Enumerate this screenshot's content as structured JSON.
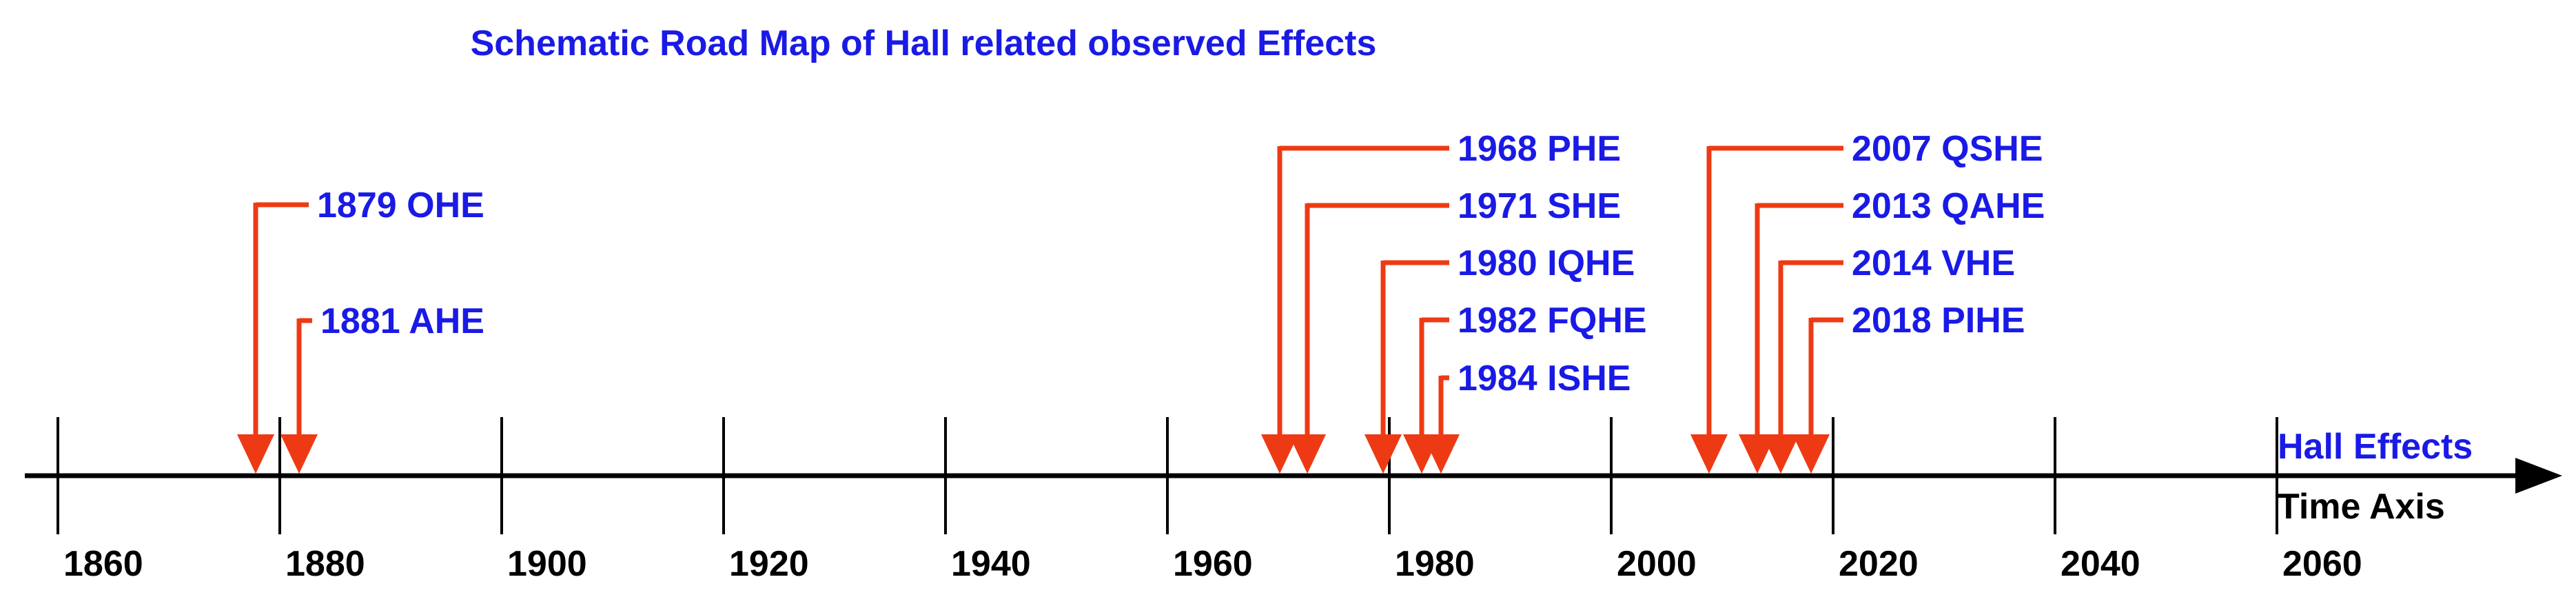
{
  "title": "Schematic Road Map of Hall related observed Effects",
  "colors": {
    "text_blue": "#1a1ae6",
    "arrow_red": "#ee3a14",
    "axis": "#000000"
  },
  "axis": {
    "ticks": [
      1860,
      1880,
      1900,
      1920,
      1940,
      1960,
      1980,
      2000,
      2020,
      2040,
      2060
    ],
    "tick_labels": [
      "1860",
      "1880",
      "1900",
      "1920",
      "1940",
      "1960",
      "1980",
      "2000",
      "2020",
      "2040",
      "2060"
    ],
    "upper_label": "Hall Effects",
    "lower_label": "Time Axis"
  },
  "events": [
    {
      "label": "1879 OHE",
      "year": 1879
    },
    {
      "label": "1881 AHE",
      "year": 1881
    },
    {
      "label": "1968 PHE",
      "year": 1968
    },
    {
      "label": "1971 SHE",
      "year": 1971
    },
    {
      "label": "1980 IQHE",
      "year": 1980
    },
    {
      "label": "1982 FQHE",
      "year": 1982
    },
    {
      "label": "1984 ISHE",
      "year": 1984
    },
    {
      "label": "2007 QSHE",
      "year": 2007
    },
    {
      "label": "2013 QAHE",
      "year": 2013
    },
    {
      "label": "2014 VHE",
      "year": 2014
    },
    {
      "label": "2018 PIHE",
      "year": 2018
    }
  ]
}
